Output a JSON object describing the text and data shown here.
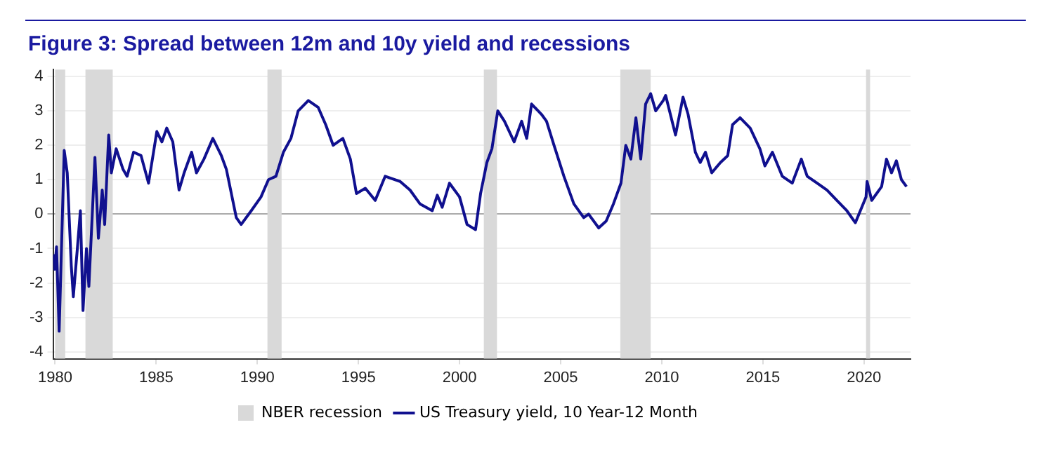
{
  "chart_data": {
    "type": "line",
    "title": "Figure 3: Spread between 12m and 10y yield and recessions",
    "xlim": [
      1979.9,
      2022.3
    ],
    "xticks": [
      1980,
      1985,
      1990,
      1995,
      2000,
      2005,
      2010,
      2015,
      2020
    ],
    "ylim": [
      -4.2,
      4.2
    ],
    "yticks": [
      -4,
      -3,
      -2,
      -1,
      0,
      1,
      2,
      3,
      4
    ],
    "grid": "y",
    "legend": "bottom",
    "marker": "none",
    "line_style": "solid",
    "bands": [
      {
        "axis": "x",
        "from": 1980.0,
        "to": 1980.5,
        "label": "NBER recession",
        "color": "#d9d9d9"
      },
      {
        "axis": "x",
        "from": 1981.5,
        "to": 1982.85,
        "color": "#d9d9d9"
      },
      {
        "axis": "x",
        "from": 1990.5,
        "to": 1991.2,
        "color": "#d9d9d9"
      },
      {
        "axis": "x",
        "from": 2001.2,
        "to": 2001.85,
        "color": "#d9d9d9"
      },
      {
        "axis": "x",
        "from": 2007.95,
        "to": 2009.45,
        "color": "#d9d9d9"
      },
      {
        "axis": "x",
        "from": 2020.1,
        "to": 2020.3,
        "color": "#d9d9d9"
      }
    ],
    "series": [
      {
        "name": "US Treasury yield, 10 Year-12 Month",
        "color": "#10108f",
        "x": [
          1979.93,
          1979.98,
          1980.07,
          1980.2,
          1980.45,
          1980.6,
          1980.8,
          1980.9,
          1981.1,
          1981.25,
          1981.38,
          1981.55,
          1981.67,
          1981.97,
          1982.14,
          1982.33,
          1982.45,
          1982.65,
          1982.78,
          1983.02,
          1983.36,
          1983.56,
          1983.88,
          1984.25,
          1984.62,
          1985.03,
          1985.28,
          1985.52,
          1985.82,
          1986.13,
          1986.38,
          1986.75,
          1986.99,
          1987.36,
          1987.8,
          1988.22,
          1988.47,
          1988.96,
          1989.2,
          1989.7,
          1990.18,
          1990.55,
          1990.92,
          1991.29,
          1991.66,
          1992.02,
          1992.52,
          1993.01,
          1993.38,
          1993.75,
          1994.23,
          1994.6,
          1994.9,
          1995.34,
          1995.83,
          1996.32,
          1997.06,
          1997.55,
          1998.04,
          1998.65,
          1998.9,
          1999.14,
          1999.5,
          2000.0,
          2000.37,
          2000.79,
          2001.04,
          2001.35,
          2001.6,
          2001.89,
          2002.22,
          2002.7,
          2003.07,
          2003.32,
          2003.56,
          2004.05,
          2004.3,
          2004.67,
          2005.16,
          2005.65,
          2006.14,
          2006.38,
          2006.88,
          2007.25,
          2007.61,
          2007.98,
          2008.22,
          2008.47,
          2008.72,
          2008.96,
          2009.2,
          2009.45,
          2009.7,
          2010.07,
          2010.19,
          2010.68,
          2011.05,
          2011.3,
          2011.66,
          2011.9,
          2012.16,
          2012.47,
          2012.9,
          2013.26,
          2013.5,
          2013.87,
          2014.37,
          2014.85,
          2015.1,
          2015.47,
          2015.96,
          2016.45,
          2016.9,
          2017.19,
          2017.68,
          2018.17,
          2018.66,
          2019.15,
          2019.57,
          2019.89,
          2020.1,
          2020.15,
          2020.38,
          2020.87,
          2021.11,
          2021.36,
          2021.6,
          2021.85,
          2022.1
        ],
        "values": [
          -1.2,
          -1.6,
          -0.95,
          -3.4,
          1.85,
          1.2,
          -1.5,
          -2.4,
          -1.0,
          0.1,
          -2.8,
          -1.0,
          -2.1,
          1.65,
          -0.7,
          0.7,
          -0.3,
          2.3,
          1.2,
          1.9,
          1.3,
          1.1,
          1.8,
          1.7,
          0.9,
          2.4,
          2.1,
          2.5,
          2.1,
          0.7,
          1.2,
          1.8,
          1.2,
          1.6,
          2.2,
          1.7,
          1.3,
          -0.1,
          -0.3,
          0.1,
          0.5,
          1.0,
          1.1,
          1.8,
          2.2,
          3.0,
          3.3,
          3.1,
          2.6,
          2.0,
          2.2,
          1.6,
          0.6,
          0.75,
          0.4,
          1.1,
          0.95,
          0.7,
          0.3,
          0.1,
          0.55,
          0.2,
          0.9,
          0.5,
          -0.3,
          -0.45,
          0.6,
          1.5,
          1.9,
          3.0,
          2.7,
          2.1,
          2.7,
          2.2,
          3.2,
          2.9,
          2.7,
          2.0,
          1.1,
          0.3,
          -0.1,
          0.0,
          -0.4,
          -0.2,
          0.3,
          0.9,
          2.0,
          1.6,
          2.8,
          1.6,
          3.2,
          3.5,
          3.0,
          3.3,
          3.45,
          2.3,
          3.4,
          2.9,
          1.8,
          1.5,
          1.8,
          1.2,
          1.5,
          1.7,
          2.6,
          2.8,
          2.5,
          1.9,
          1.4,
          1.8,
          1.1,
          0.9,
          1.6,
          1.1,
          0.9,
          0.7,
          0.4,
          0.1,
          -0.25,
          0.2,
          0.5,
          0.95,
          0.4,
          0.8,
          1.6,
          1.2,
          1.55,
          1.0,
          0.8
        ]
      }
    ]
  }
}
